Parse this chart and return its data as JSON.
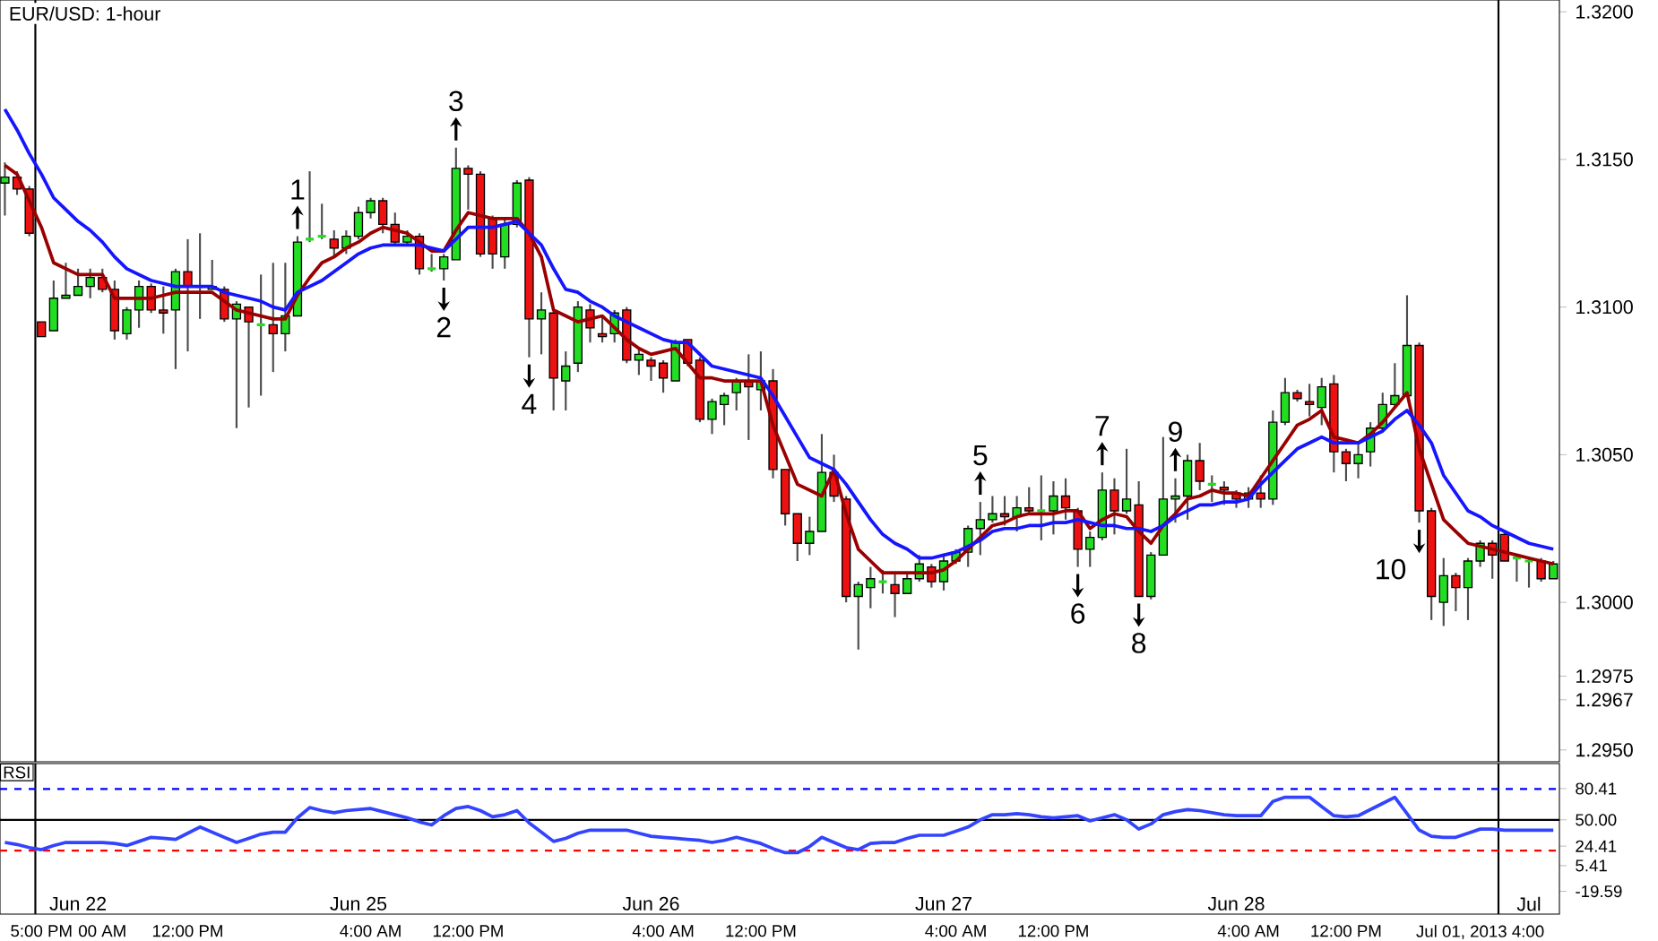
{
  "chart_data": [
    {
      "type": "candlestick",
      "title": "EUR/USD: 1-hour",
      "categories": [
        null,
        null,
        null,
        null,
        null,
        null,
        "Jun 22",
        null,
        null,
        null,
        null,
        null,
        null,
        null,
        null,
        null,
        null,
        null,
        null,
        null,
        null,
        null,
        null,
        null,
        null,
        null,
        null,
        null,
        null,
        "Jun 25",
        null,
        null,
        null,
        null,
        null,
        null,
        null,
        null,
        null,
        null,
        null,
        null,
        null,
        null,
        null,
        null,
        null,
        null,
        null,
        null,
        null,
        null,
        null,
        "Jun 26",
        null,
        null,
        null,
        null,
        null,
        null,
        null,
        null,
        null,
        null,
        null,
        null,
        null,
        null,
        null,
        null,
        null,
        null,
        null,
        null,
        null,
        null,
        null,
        "Jun 27",
        null,
        null,
        null,
        null,
        null,
        null,
        null,
        null,
        null,
        null,
        null,
        null,
        null,
        null,
        null,
        null,
        null,
        null,
        null,
        null,
        null,
        null,
        null,
        "Jun 28",
        null,
        null,
        null,
        null,
        null,
        null,
        null,
        null,
        null,
        null,
        null,
        null,
        null,
        null,
        null,
        null,
        null,
        null,
        null,
        null,
        null,
        null,
        null,
        "Jul",
        null,
        null
      ],
      "ylim": [
        1.2946,
        1.3204
      ],
      "yticks": [
        {
          "value": 1.295,
          "label": "1.2950"
        },
        {
          "value": 1.3,
          "label": "1.3000"
        },
        {
          "value": 1.305,
          "label": "1.3050"
        },
        {
          "value": 1.31,
          "label": "1.3100"
        },
        {
          "value": 1.315,
          "label": "1.3150"
        },
        {
          "value": 1.32,
          "label": "1.3200"
        },
        {
          "value": 1.2975,
          "label": "1.2975"
        },
        {
          "value": 1.2967,
          "label": "1.2967"
        }
      ],
      "annotations": [
        "1",
        "2",
        "3",
        "4",
        "5",
        "6",
        "7",
        "8",
        "9",
        "10"
      ],
      "series": [
        {
          "type": "line",
          "color": "#990000",
          "values": [
            1.3148,
            1.3145,
            1.3136,
            1.3127,
            1.3115,
            1.3113,
            1.3111,
            1.3111,
            1.3111,
            1.3103,
            1.3103,
            1.3103,
            1.3103,
            1.3104,
            1.3105,
            1.3105,
            1.3105,
            1.3105,
            1.3102,
            1.3099,
            1.3098,
            1.3097,
            1.3096,
            1.3096,
            1.3104,
            1.311,
            1.3115,
            1.3117,
            1.312,
            1.3122,
            1.3125,
            1.3127,
            1.3126,
            1.3125,
            1.3122,
            1.3119,
            1.3119,
            1.3126,
            1.3132,
            1.3131,
            1.313,
            1.313,
            1.313,
            1.3125,
            1.3117,
            1.3099,
            1.3097,
            1.3095,
            1.3096,
            1.3097,
            1.3093,
            1.3089,
            1.3086,
            1.3084,
            1.3085,
            1.3086,
            1.3081,
            1.3076,
            1.3076,
            1.3075,
            1.3075,
            1.3075,
            1.3075,
            1.306,
            1.305,
            1.304,
            1.3038,
            1.3036,
            1.3045,
            1.303,
            1.3018,
            1.3014,
            1.301,
            1.301,
            1.301,
            1.301,
            1.301,
            1.3011,
            1.3014,
            1.3018,
            1.3022,
            1.3026,
            1.3027,
            1.3029,
            1.303,
            1.303,
            1.303,
            1.3031,
            1.3031,
            1.3025,
            1.3028,
            1.303,
            1.3029,
            1.3024,
            1.302,
            1.3026,
            1.303,
            1.3035,
            1.3036,
            1.3038,
            1.3037,
            1.3037,
            1.3036,
            1.3042,
            1.3048,
            1.3054,
            1.306,
            1.3062,
            1.3065,
            1.3056,
            1.3055,
            1.3054,
            1.3057,
            1.3061,
            1.3066,
            1.3071,
            1.3052,
            1.304,
            1.3028,
            1.3024,
            1.302,
            1.3019,
            1.3018,
            1.3017,
            1.3016,
            1.3015,
            1.3014,
            1.3013
          ]
        },
        {
          "type": "line",
          "color": "#1515ff",
          "values": [
            1.3167,
            1.316,
            1.3152,
            1.3145,
            1.3137,
            1.3133,
            1.3129,
            1.3126,
            1.3122,
            1.3117,
            1.3113,
            1.3111,
            1.3109,
            1.3108,
            1.3107,
            1.3107,
            1.3107,
            1.3107,
            1.3105,
            1.3104,
            1.3103,
            1.3102,
            1.31,
            1.3099,
            1.3105,
            1.3107,
            1.3109,
            1.3112,
            1.3115,
            1.3118,
            1.312,
            1.3121,
            1.3121,
            1.3121,
            1.3121,
            1.312,
            1.3119,
            1.3123,
            1.3127,
            1.3127,
            1.3127,
            1.3128,
            1.3129,
            1.3125,
            1.3121,
            1.3113,
            1.3106,
            1.3105,
            1.3102,
            1.31,
            1.3097,
            1.3095,
            1.3093,
            1.3091,
            1.3089,
            1.3088,
            1.3088,
            1.3084,
            1.308,
            1.3079,
            1.3078,
            1.3077,
            1.3076,
            1.307,
            1.3063,
            1.3056,
            1.3049,
            1.3047,
            1.3045,
            1.304,
            1.3034,
            1.3028,
            1.3023,
            1.302,
            1.3018,
            1.3015,
            1.3015,
            1.3016,
            1.3017,
            1.3019,
            1.3021,
            1.3024,
            1.3025,
            1.3025,
            1.3026,
            1.3026,
            1.3027,
            1.3027,
            1.3028,
            1.3027,
            1.3026,
            1.3026,
            1.3025,
            1.3025,
            1.3024,
            1.3026,
            1.3029,
            1.3031,
            1.3033,
            1.3033,
            1.3034,
            1.3034,
            1.3035,
            1.304,
            1.3044,
            1.3048,
            1.3052,
            1.3054,
            1.3056,
            1.3054,
            1.3054,
            1.3054,
            1.3056,
            1.3058,
            1.3062,
            1.3065,
            1.306,
            1.3054,
            1.3043,
            1.3037,
            1.3031,
            1.3029,
            1.3026,
            1.3024,
            1.3022,
            1.302,
            1.3019,
            1.3018
          ]
        },
        {
          "type": "candlestick",
          "colors": [
            "#22dd22",
            "#ee1111",
            "#ee1111",
            "#ee1111",
            "#22dd22",
            "#22dd22",
            "#22dd22",
            "#22dd22",
            "#ee1111",
            "#ee1111",
            "#22dd22",
            "#22dd22",
            "#ee1111",
            "#ee1111",
            "#22dd22",
            "#ee1111",
            "#22dd22",
            "#22dd22",
            "#ee1111",
            "#22dd22",
            "#ee1111",
            "#22dd22",
            "#ee1111",
            "#22dd22",
            "#22dd22",
            "#22dd22",
            "#22dd22",
            "#ee1111",
            "#22dd22",
            "#22dd22",
            "#22dd22",
            "#ee1111",
            "#ee1111",
            "#22dd22",
            "#ee1111",
            "#22dd22",
            "#22dd22",
            "#22dd22",
            "#ee1111",
            "#ee1111",
            "#ee1111",
            "#22dd22",
            "#22dd22",
            "#ee1111",
            "#22dd22",
            "#ee1111",
            "#22dd22",
            "#22dd22",
            "#ee1111",
            "#ee1111",
            "#22dd22",
            "#ee1111",
            "#22dd22",
            "#ee1111",
            "#ee1111",
            "#22dd22",
            "#ee1111",
            "#ee1111",
            "#22dd22",
            "#22dd22",
            "#22dd22",
            "#ee1111",
            "#22dd22",
            "#ee1111",
            "#ee1111",
            "#ee1111",
            "#22dd22",
            "#22dd22",
            "#ee1111",
            "#ee1111",
            "#22dd22",
            "#22dd22",
            "#22dd22",
            "#ee1111",
            "#22dd22",
            "#22dd22",
            "#ee1111",
            "#22dd22",
            "#22dd22",
            "#22dd22",
            "#22dd22",
            "#22dd22",
            "#ee1111",
            "#22dd22",
            "#ee1111",
            "#22dd22",
            "#22dd22",
            "#ee1111",
            "#ee1111",
            "#22dd22",
            "#22dd22",
            "#ee1111",
            "#22dd22",
            "#ee1111",
            "#22dd22",
            "#22dd22",
            "#22dd22",
            "#22dd22",
            "#ee1111",
            "#22dd22",
            "#ee1111",
            "#ee1111",
            "#22dd22",
            "#ee1111",
            "#22dd22",
            "#22dd22",
            "#ee1111",
            "#ee1111",
            "#22dd22",
            "#ee1111",
            "#ee1111",
            "#22dd22",
            "#22dd22",
            "#22dd22",
            "#22dd22",
            "#22dd22",
            "#ee1111",
            "#ee1111",
            "#22dd22",
            "#ee1111",
            "#22dd22",
            "#22dd22",
            "#ee1111",
            "#ee1111",
            "#22dd22",
            "#22dd22",
            "#ee1111",
            "#22dd22"
          ],
          "ohlc": [
            [
              1.3142,
              1.3149,
              1.3131,
              1.3144
            ],
            [
              1.3144,
              1.3146,
              1.3138,
              1.314
            ],
            [
              1.314,
              1.3141,
              1.3124,
              1.3125
            ],
            [
              1.3095,
              1.3095,
              1.309,
              1.309
            ],
            [
              1.3092,
              1.3109,
              1.3092,
              1.3103
            ],
            [
              1.3103,
              1.3115,
              1.3103,
              1.3104
            ],
            [
              1.3104,
              1.3113,
              1.3104,
              1.3107
            ],
            [
              1.3107,
              1.3113,
              1.3103,
              1.311
            ],
            [
              1.311,
              1.3113,
              1.3105,
              1.3106
            ],
            [
              1.3106,
              1.3109,
              1.3089,
              1.3092
            ],
            [
              1.3091,
              1.31,
              1.3089,
              1.3099
            ],
            [
              1.3099,
              1.3109,
              1.3093,
              1.3107
            ],
            [
              1.3107,
              1.3108,
              1.3098,
              1.3099
            ],
            [
              1.3099,
              1.3107,
              1.3091,
              1.3098
            ],
            [
              1.3099,
              1.3113,
              1.3079,
              1.3112
            ],
            [
              1.3112,
              1.3123,
              1.3085,
              1.3107
            ],
            [
              1.3107,
              1.3125,
              1.3096,
              1.3107
            ],
            [
              1.3106,
              1.3116,
              1.3106,
              1.3107
            ],
            [
              1.3106,
              1.3107,
              1.3095,
              1.3096
            ],
            [
              1.3096,
              1.3102,
              1.3059,
              1.3101
            ],
            [
              1.31,
              1.31,
              1.3066,
              1.3095
            ],
            [
              1.3094,
              1.3111,
              1.307,
              1.3094
            ],
            [
              1.3094,
              1.3115,
              1.3078,
              1.3091
            ],
            [
              1.3091,
              1.3115,
              1.3085,
              1.3097
            ],
            [
              1.3097,
              1.3124,
              1.3097,
              1.3122
            ],
            [
              1.3123,
              1.3146,
              1.3122,
              1.3123
            ],
            [
              1.3124,
              1.3135,
              1.3123,
              1.3124
            ],
            [
              1.3123,
              1.3126,
              1.3117,
              1.312
            ],
            [
              1.312,
              1.3126,
              1.3118,
              1.3124
            ],
            [
              1.3124,
              1.3134,
              1.3123,
              1.3132
            ],
            [
              1.3132,
              1.3137,
              1.313,
              1.3136
            ],
            [
              1.3136,
              1.3137,
              1.3125,
              1.3128
            ],
            [
              1.3128,
              1.3132,
              1.3121,
              1.3122
            ],
            [
              1.3122,
              1.3126,
              1.3121,
              1.3124
            ],
            [
              1.3124,
              1.3125,
              1.3111,
              1.3113
            ],
            [
              1.3113,
              1.3118,
              1.3112,
              1.3113
            ],
            [
              1.3113,
              1.3118,
              1.3109,
              1.3117
            ],
            [
              1.3116,
              1.3154,
              1.3116,
              1.3147
            ],
            [
              1.3147,
              1.3148,
              1.3133,
              1.3145
            ],
            [
              1.3145,
              1.3146,
              1.3117,
              1.3118
            ],
            [
              1.313,
              1.3131,
              1.3113,
              1.3118
            ],
            [
              1.3117,
              1.313,
              1.3113,
              1.3128
            ],
            [
              1.3128,
              1.3143,
              1.3127,
              1.3142
            ],
            [
              1.3143,
              1.3144,
              1.3083,
              1.3096
            ],
            [
              1.3096,
              1.3105,
              1.3084,
              1.3099
            ],
            [
              1.3098,
              1.3099,
              1.3065,
              1.3076
            ],
            [
              1.3075,
              1.3085,
              1.3065,
              1.308
            ],
            [
              1.3081,
              1.3102,
              1.3078,
              1.31
            ],
            [
              1.3099,
              1.3101,
              1.3088,
              1.3093
            ],
            [
              1.3091,
              1.3097,
              1.3088,
              1.309
            ],
            [
              1.3091,
              1.3099,
              1.3088,
              1.3098
            ],
            [
              1.3099,
              1.31,
              1.3081,
              1.3082
            ],
            [
              1.3082,
              1.3086,
              1.3077,
              1.3084
            ],
            [
              1.3082,
              1.3083,
              1.3075,
              1.308
            ],
            [
              1.3081,
              1.3082,
              1.3071,
              1.3076
            ],
            [
              1.3075,
              1.3089,
              1.3075,
              1.3088
            ],
            [
              1.3089,
              1.3089,
              1.308,
              1.3081
            ],
            [
              1.3082,
              1.3083,
              1.3061,
              1.3062
            ],
            [
              1.3062,
              1.3069,
              1.3057,
              1.3068
            ],
            [
              1.3067,
              1.3071,
              1.306,
              1.307
            ],
            [
              1.3071,
              1.3076,
              1.3065,
              1.3075
            ],
            [
              1.3075,
              1.3084,
              1.3055,
              1.3073
            ],
            [
              1.3072,
              1.3085,
              1.3065,
              1.3075
            ],
            [
              1.3075,
              1.3079,
              1.3042,
              1.3045
            ],
            [
              1.3045,
              1.3045,
              1.3026,
              1.303
            ],
            [
              1.303,
              1.303,
              1.3014,
              1.302
            ],
            [
              1.302,
              1.3029,
              1.3016,
              1.3024
            ],
            [
              1.3024,
              1.3057,
              1.3024,
              1.3044
            ],
            [
              1.3044,
              1.305,
              1.3034,
              1.3036
            ],
            [
              1.3035,
              1.3036,
              1.3,
              1.3002
            ],
            [
              1.3002,
              1.3007,
              1.2984,
              1.3006
            ],
            [
              1.3005,
              1.3012,
              1.2998,
              1.3008
            ],
            [
              1.3007,
              1.3011,
              1.3003,
              1.3007
            ],
            [
              1.3006,
              1.301,
              1.2995,
              1.3003
            ],
            [
              1.3003,
              1.301,
              1.3003,
              1.3008
            ],
            [
              1.3008,
              1.3016,
              1.3007,
              1.3013
            ],
            [
              1.3012,
              1.3013,
              1.3005,
              1.3007
            ],
            [
              1.3007,
              1.3016,
              1.3004,
              1.3014
            ],
            [
              1.3014,
              1.3018,
              1.3013,
              1.3017
            ],
            [
              1.3017,
              1.3026,
              1.3012,
              1.3025
            ],
            [
              1.3025,
              1.3034,
              1.3016,
              1.3028
            ],
            [
              1.3028,
              1.3036,
              1.3027,
              1.303
            ],
            [
              1.303,
              1.3036,
              1.3026,
              1.3029
            ],
            [
              1.3029,
              1.3036,
              1.3024,
              1.3032
            ],
            [
              1.3032,
              1.3039,
              1.303,
              1.3031
            ],
            [
              1.3031,
              1.3043,
              1.3021,
              1.3031
            ],
            [
              1.3031,
              1.3041,
              1.3023,
              1.3036
            ],
            [
              1.3036,
              1.3042,
              1.3028,
              1.3032
            ],
            [
              1.3031,
              1.3032,
              1.3012,
              1.3018
            ],
            [
              1.3018,
              1.3024,
              1.3012,
              1.3022
            ],
            [
              1.3022,
              1.3044,
              1.3021,
              1.3038
            ],
            [
              1.3038,
              1.3042,
              1.3023,
              1.3031
            ],
            [
              1.3031,
              1.3052,
              1.303,
              1.3035
            ],
            [
              1.3033,
              1.3041,
              1.3002,
              1.3002
            ],
            [
              1.3002,
              1.3017,
              1.3001,
              1.3016
            ],
            [
              1.3016,
              1.3056,
              1.3016,
              1.3035
            ],
            [
              1.3035,
              1.3042,
              1.3027,
              1.3036
            ],
            [
              1.3036,
              1.305,
              1.3028,
              1.3048
            ],
            [
              1.3048,
              1.3054,
              1.3038,
              1.3041
            ],
            [
              1.304,
              1.3043,
              1.3034,
              1.304
            ],
            [
              1.3039,
              1.3041,
              1.3033,
              1.3038
            ],
            [
              1.3037,
              1.3038,
              1.3032,
              1.3035
            ],
            [
              1.3035,
              1.3039,
              1.3032,
              1.3037
            ],
            [
              1.3037,
              1.3043,
              1.3032,
              1.3035
            ],
            [
              1.3035,
              1.3065,
              1.3033,
              1.3061
            ],
            [
              1.3061,
              1.3076,
              1.306,
              1.3071
            ],
            [
              1.3071,
              1.3072,
              1.3068,
              1.3069
            ],
            [
              1.3068,
              1.3074,
              1.3063,
              1.3067
            ],
            [
              1.3066,
              1.3076,
              1.306,
              1.3073
            ],
            [
              1.3074,
              1.3077,
              1.3044,
              1.3051
            ],
            [
              1.3051,
              1.3052,
              1.3041,
              1.3047
            ],
            [
              1.3047,
              1.3054,
              1.3042,
              1.305
            ],
            [
              1.3051,
              1.3061,
              1.3046,
              1.3059
            ],
            [
              1.3059,
              1.3071,
              1.3058,
              1.3067
            ],
            [
              1.3067,
              1.3081,
              1.3066,
              1.307
            ],
            [
              1.307,
              1.3104,
              1.307,
              1.3087
            ],
            [
              1.3087,
              1.3088,
              1.3027,
              1.3031
            ],
            [
              1.3031,
              1.3032,
              1.2994,
              1.3002
            ],
            [
              1.3,
              1.3015,
              1.2992,
              1.3009
            ],
            [
              1.3009,
              1.301,
              1.2997,
              1.3005
            ],
            [
              1.3005,
              1.3015,
              1.2994,
              1.3014
            ],
            [
              1.3014,
              1.3021,
              1.3012,
              1.302
            ],
            [
              1.302,
              1.3021,
              1.3008,
              1.3016
            ],
            [
              1.3023,
              1.3024,
              1.3014,
              1.3014
            ],
            [
              1.3015,
              1.3016,
              1.3007,
              1.3015
            ],
            [
              1.3014,
              1.3015,
              1.3005,
              1.3014
            ],
            [
              1.3014,
              1.3015,
              1.3007,
              1.3008
            ],
            [
              1.3008,
              1.3014,
              1.3008,
              1.3013
            ]
          ]
        }
      ]
    },
    {
      "type": "line",
      "title": "RSI",
      "categories": [
        null,
        null,
        null,
        "5:00 PM",
        null,
        null,
        null,
        null,
        "00 AM",
        null,
        null,
        null,
        null,
        null,
        null,
        "12:00 PM",
        null,
        null,
        null,
        null,
        null,
        null,
        null,
        null,
        null,
        null,
        null,
        null,
        null,
        null,
        "4:00 AM",
        null,
        null,
        null,
        null,
        null,
        null,
        null,
        "12:00 PM",
        null,
        null,
        null,
        null,
        null,
        null,
        null,
        null,
        null,
        null,
        null,
        null,
        null,
        null,
        null,
        "4:00 AM",
        null,
        null,
        null,
        null,
        null,
        null,
        null,
        "12:00 PM",
        null,
        null,
        null,
        null,
        null,
        null,
        null,
        null,
        null,
        null,
        null,
        null,
        null,
        null,
        null,
        "4:00 AM",
        null,
        null,
        null,
        null,
        null,
        null,
        null,
        "12:00 PM",
        null,
        null,
        null,
        null,
        null,
        null,
        null,
        null,
        null,
        null,
        null,
        null,
        null,
        null,
        null,
        "4:00 AM",
        null,
        null,
        null,
        null,
        null,
        null,
        null,
        "12:00 PM",
        null,
        null,
        null,
        null,
        null,
        null,
        null,
        null,
        null,
        null,
        "Jul 01, 2013 4:00",
        null,
        null,
        null,
        null,
        null,
        null
      ],
      "ylim": [
        -41.8,
        104.8
      ],
      "yticks": [
        80.41,
        {
          "value": 50,
          "label": "50.00"
        },
        24.41,
        5.41,
        -19.59
      ],
      "ref_lines": [
        {
          "axis": "y",
          "value": 80,
          "color": "#0000ff",
          "line_style": "dashed"
        },
        {
          "axis": "y",
          "value": 50,
          "color": "#000000"
        },
        {
          "axis": "y",
          "value": 20,
          "color": "#ff0000",
          "line_style": "dashed"
        }
      ],
      "series": [
        {
          "color": "#3344ff",
          "values": [
            28,
            26,
            23,
            21,
            25,
            28,
            28,
            28,
            28,
            27,
            25,
            29,
            33,
            32,
            31,
            37,
            43,
            38,
            33,
            28,
            32,
            36,
            38,
            38,
            52,
            62,
            59,
            57,
            59,
            60,
            61,
            58,
            55,
            52,
            48,
            45,
            54,
            61,
            63,
            59,
            53,
            55,
            59,
            47,
            38,
            29,
            32,
            37,
            40,
            40,
            40,
            40,
            37,
            34,
            33,
            32,
            31,
            30,
            28,
            30,
            33,
            30,
            27,
            22,
            18,
            18,
            24,
            33,
            28,
            23,
            21,
            27,
            28,
            28,
            32,
            35,
            35,
            35,
            39,
            43,
            50,
            55,
            55,
            56,
            55,
            53,
            52,
            53,
            54,
            49,
            52,
            55,
            50,
            41,
            46,
            55,
            58,
            60,
            59,
            57,
            55,
            54,
            54,
            54,
            68,
            72,
            72,
            72,
            63,
            54,
            53,
            54,
            60,
            66,
            72,
            56,
            40,
            34,
            33,
            33,
            37,
            41,
            41,
            40,
            40,
            40,
            40,
            40
          ]
        }
      ]
    }
  ]
}
